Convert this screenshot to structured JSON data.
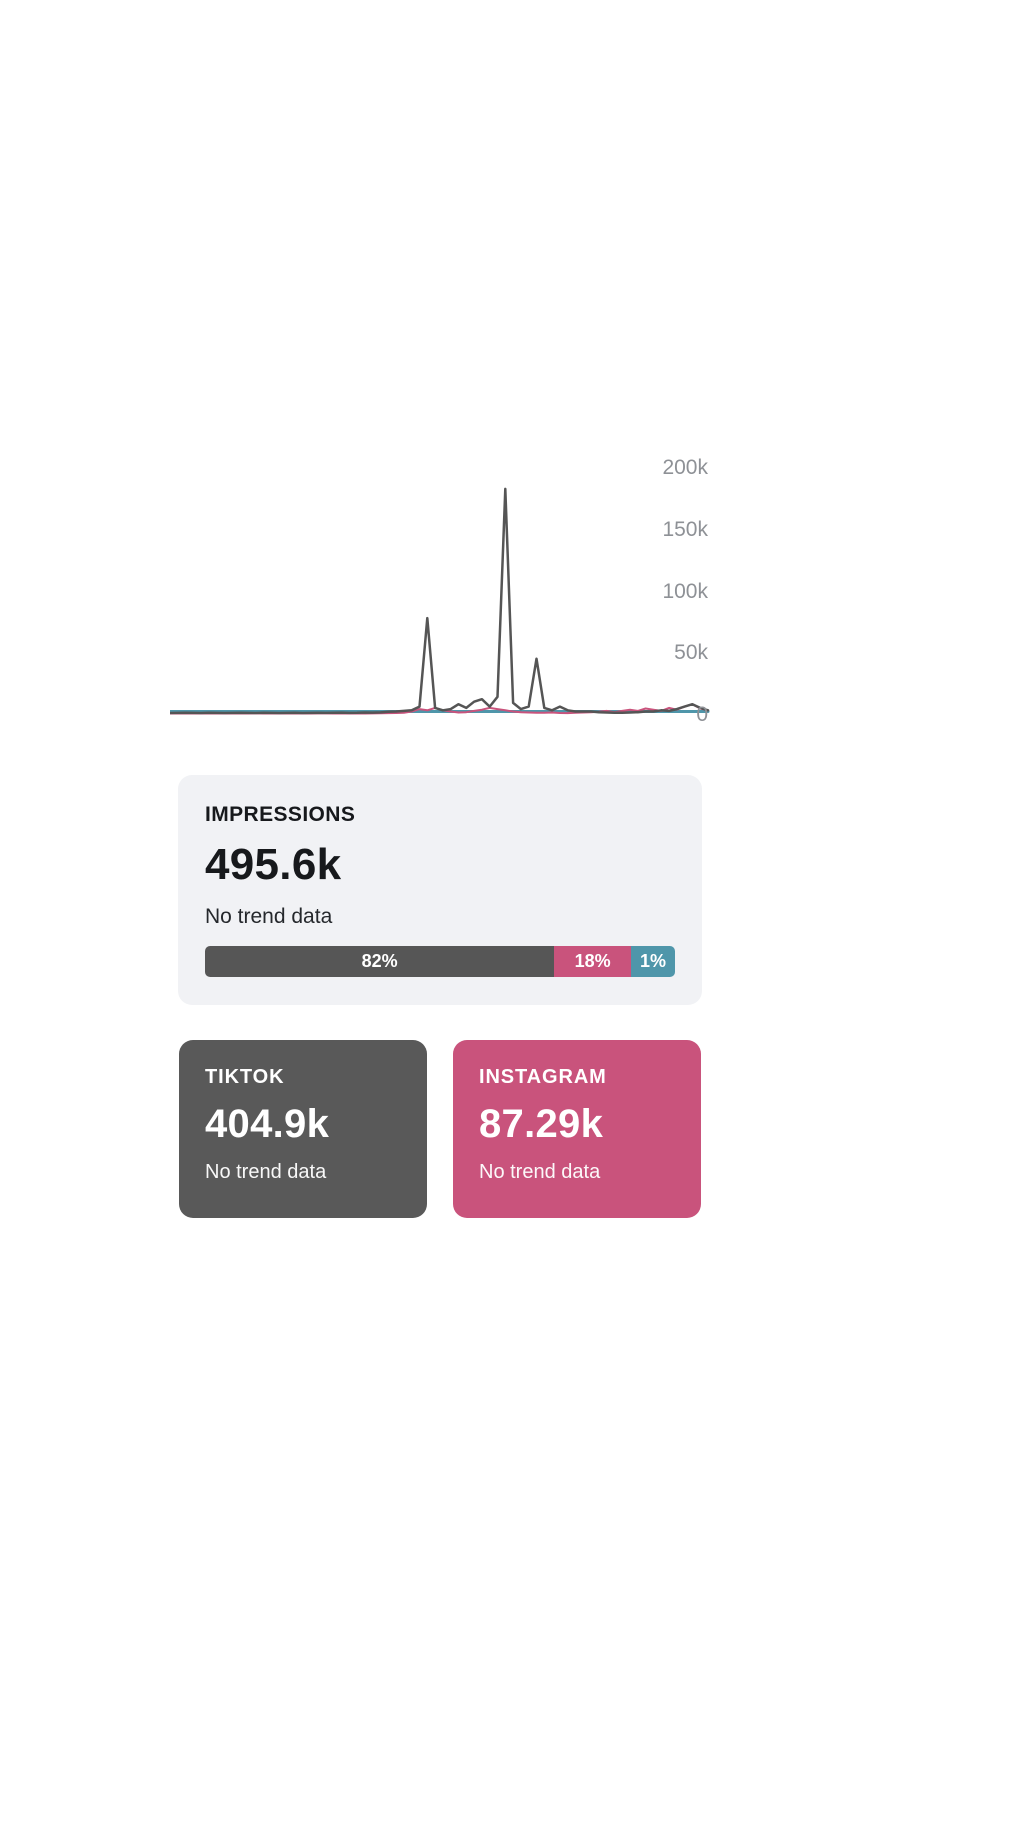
{
  "colors": {
    "tiktok": "#595959",
    "instagram": "#c9537c",
    "other": "#4f96aa",
    "card_bg": "#f1f2f5",
    "axis_label": "#8e9196"
  },
  "impressions": {
    "title": "IMPRESSIONS",
    "value": "495.6k",
    "trend": "No trend data",
    "segments": [
      {
        "name": "tiktok",
        "label": "82%",
        "value": 82,
        "color": "#565656"
      },
      {
        "name": "instagram",
        "label": "18%",
        "value": 18,
        "color": "#c9537c"
      },
      {
        "name": "other",
        "label": "1%",
        "value": 1,
        "color": "#4f96aa"
      }
    ]
  },
  "platforms": [
    {
      "name": "tiktok",
      "title": "TIKTOK",
      "value": "404.9k",
      "trend": "No trend data",
      "color": "#595959"
    },
    {
      "name": "instagram",
      "title": "INSTAGRAM",
      "value": "87.29k",
      "trend": "No trend data",
      "color": "#c9537c"
    }
  ],
  "chart_data": {
    "type": "line",
    "title": "",
    "xlabel": "",
    "ylabel": "",
    "ylim": [
      0,
      200000
    ],
    "y_ticks": [
      "200k",
      "150k",
      "100k",
      "50k",
      "0"
    ],
    "grid": false,
    "legend_position": "none",
    "x_axis_labels_visible": false,
    "series": [
      {
        "name": "tiktok",
        "color": "#555555",
        "values": [
          800,
          900,
          1000,
          900,
          800,
          1000,
          900,
          800,
          900,
          1000,
          900,
          800,
          1000,
          900,
          800,
          900,
          1000,
          800,
          900,
          1000,
          900,
          1000,
          1100,
          900,
          1000,
          1200,
          1100,
          1300,
          1800,
          2000,
          2500,
          3000,
          6000,
          78000,
          5000,
          3000,
          4000,
          8000,
          5000,
          10000,
          12000,
          6000,
          14000,
          183000,
          9000,
          4000,
          6000,
          45000,
          5000,
          3000,
          6000,
          3000,
          2000,
          2000,
          2000,
          1500,
          1200,
          1000,
          1000,
          1200,
          1500,
          2000,
          2000,
          3000,
          2500,
          4000,
          6000,
          8000,
          5000,
          3000
        ]
      },
      {
        "name": "instagram",
        "color": "#c9537c",
        "values": [
          400,
          500,
          400,
          500,
          400,
          500,
          400,
          500,
          400,
          500,
          400,
          500,
          400,
          500,
          400,
          500,
          400,
          500,
          400,
          500,
          500,
          400,
          500,
          400,
          500,
          400,
          500,
          600,
          700,
          800,
          1000,
          2000,
          4000,
          3000,
          5000,
          3000,
          2000,
          1200,
          1500,
          2500,
          3500,
          5000,
          4000,
          3000,
          2000,
          1500,
          1200,
          1000,
          1000,
          1200,
          800,
          700,
          1000,
          1200,
          1500,
          1800,
          2500,
          1500,
          2500,
          3500,
          2500,
          4500,
          3500,
          2500,
          5000,
          3500,
          6000,
          8000,
          4500,
          3000
        ]
      },
      {
        "name": "other",
        "color": "#4f96aa",
        "values": [
          2000,
          2000,
          2000,
          2000,
          2000,
          2000,
          2000,
          2000,
          2000,
          2000,
          2000,
          2000,
          2000,
          2000,
          2000,
          2000,
          2000,
          2000,
          2000,
          2000,
          2000,
          2000,
          2000,
          2000,
          2000,
          2000,
          2000,
          2000,
          2000,
          2000,
          2000,
          2000,
          2000,
          2000,
          2000,
          2000,
          2000,
          2000,
          2000,
          2000,
          2000,
          2000,
          2000,
          2000,
          2000,
          2000,
          2000,
          2000,
          2000,
          2000,
          2000,
          2000,
          2000,
          2000,
          2000,
          2000,
          2000,
          2000,
          2000,
          2000,
          2000,
          2000,
          2000,
          2000,
          2000,
          2000,
          2000,
          2000,
          2000,
          2000
        ]
      }
    ]
  }
}
